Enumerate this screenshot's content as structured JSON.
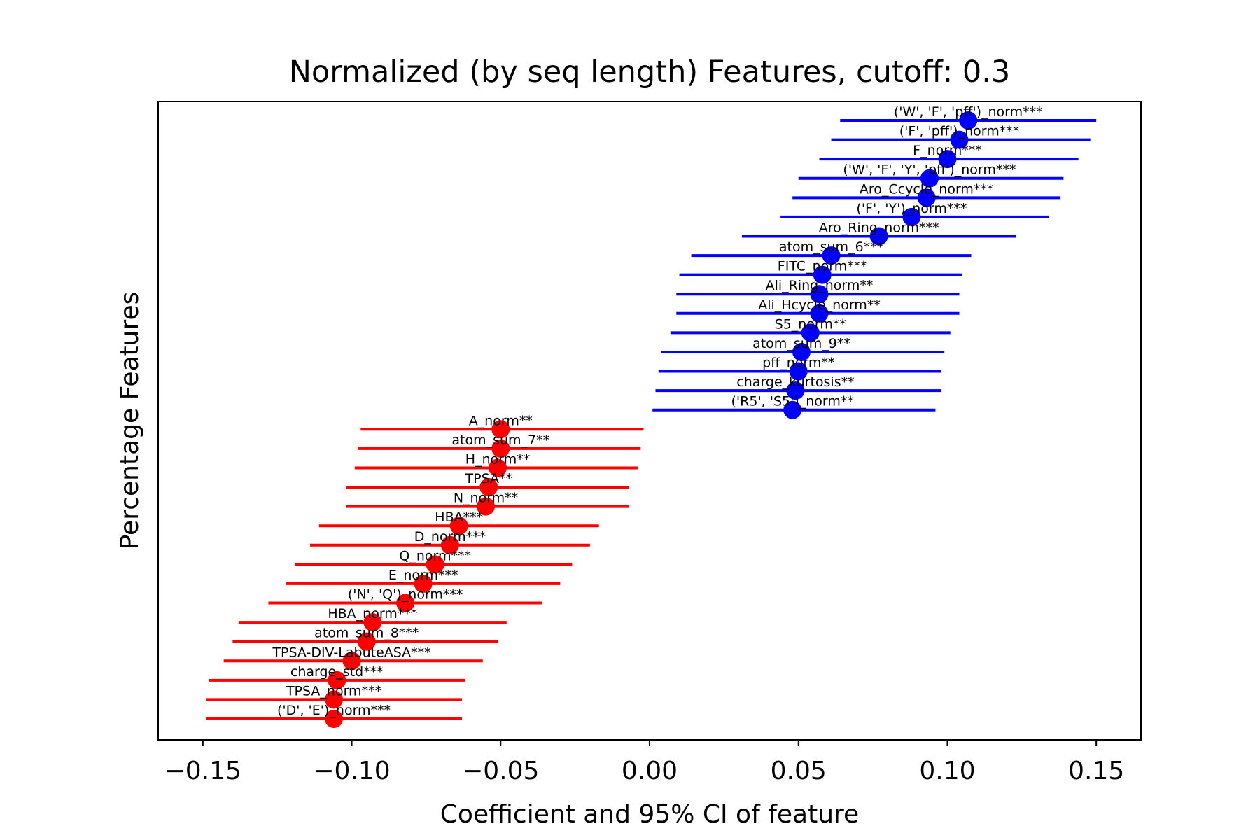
{
  "chart_data": {
    "type": "scatter",
    "subtype": "coefficient-errorbar",
    "title": "Normalized (by seq length) Features, cutoff: 0.3",
    "xlabel": "Coefficient and 95% CI of feature",
    "ylabel": "Percentage Features",
    "xlim": [
      -0.165,
      0.165
    ],
    "x_ticks": [
      -0.15,
      -0.1,
      -0.05,
      0.0,
      0.05,
      0.1,
      0.15
    ],
    "x_tick_labels": [
      "−0.15",
      "−0.10",
      "−0.05",
      "0.00",
      "0.05",
      "0.10",
      "0.15"
    ],
    "grid": false,
    "colors": {
      "positive": "#0000ff",
      "negative": "#ff0000"
    },
    "series": [
      {
        "color": "#0000ff",
        "points": [
          {
            "label": "('W', 'F', 'pff')_norm***",
            "coef": 0.107,
            "ci": [
              0.064,
              0.15
            ]
          },
          {
            "label": "('F', 'pff')_norm***",
            "coef": 0.104,
            "ci": [
              0.061,
              0.148
            ]
          },
          {
            "label": "F_norm***",
            "coef": 0.1,
            "ci": [
              0.057,
              0.144
            ]
          },
          {
            "label": "('W', 'F', 'Y', 'pff')_norm***",
            "coef": 0.094,
            "ci": [
              0.05,
              0.139
            ]
          },
          {
            "label": "Aro_Ccycle_norm***",
            "coef": 0.093,
            "ci": [
              0.048,
              0.138
            ]
          },
          {
            "label": "('F', 'Y')_norm***",
            "coef": 0.088,
            "ci": [
              0.044,
              0.134
            ]
          },
          {
            "label": "Aro_Ring_norm***",
            "coef": 0.077,
            "ci": [
              0.031,
              0.123
            ]
          },
          {
            "label": "atom_sum_6***",
            "coef": 0.061,
            "ci": [
              0.014,
              0.108
            ]
          },
          {
            "label": "FITC_norm***",
            "coef": 0.058,
            "ci": [
              0.01,
              0.105
            ]
          },
          {
            "label": "Ali_Ring_norm**",
            "coef": 0.057,
            "ci": [
              0.009,
              0.104
            ]
          },
          {
            "label": "Ali_Hcycle_norm**",
            "coef": 0.057,
            "ci": [
              0.009,
              0.104
            ]
          },
          {
            "label": "S5_norm**",
            "coef": 0.054,
            "ci": [
              0.007,
              0.101
            ]
          },
          {
            "label": "atom_sum_9**",
            "coef": 0.051,
            "ci": [
              0.004,
              0.099
            ]
          },
          {
            "label": "pff_norm**",
            "coef": 0.05,
            "ci": [
              0.003,
              0.098
            ]
          },
          {
            "label": "charge_kurtosis**",
            "coef": 0.049,
            "ci": [
              0.002,
              0.098
            ]
          },
          {
            "label": "('R5', 'S5')_norm**",
            "coef": 0.048,
            "ci": [
              0.001,
              0.096
            ]
          }
        ]
      },
      {
        "color": "#ff0000",
        "points": [
          {
            "label": "A_norm**",
            "coef": -0.05,
            "ci": [
              -0.097,
              -0.002
            ]
          },
          {
            "label": "atom_sum_7**",
            "coef": -0.05,
            "ci": [
              -0.098,
              -0.003
            ]
          },
          {
            "label": "H_norm**",
            "coef": -0.051,
            "ci": [
              -0.099,
              -0.004
            ]
          },
          {
            "label": "TPSA**",
            "coef": -0.054,
            "ci": [
              -0.102,
              -0.007
            ]
          },
          {
            "label": "N_norm**",
            "coef": -0.055,
            "ci": [
              -0.102,
              -0.007
            ]
          },
          {
            "label": "HBA***",
            "coef": -0.064,
            "ci": [
              -0.111,
              -0.017
            ]
          },
          {
            "label": "D_norm***",
            "coef": -0.067,
            "ci": [
              -0.114,
              -0.02
            ]
          },
          {
            "label": "Q_norm***",
            "coef": -0.072,
            "ci": [
              -0.119,
              -0.026
            ]
          },
          {
            "label": "E_norm***",
            "coef": -0.076,
            "ci": [
              -0.122,
              -0.03
            ]
          },
          {
            "label": "('N', 'Q')_norm***",
            "coef": -0.082,
            "ci": [
              -0.128,
              -0.036
            ]
          },
          {
            "label": "HBA_norm***",
            "coef": -0.093,
            "ci": [
              -0.138,
              -0.048
            ]
          },
          {
            "label": "atom_sum_8***",
            "coef": -0.095,
            "ci": [
              -0.14,
              -0.051
            ]
          },
          {
            "label": "TPSA-DIV-LabuteASA***",
            "coef": -0.1,
            "ci": [
              -0.143,
              -0.056
            ]
          },
          {
            "label": "charge_std***",
            "coef": -0.105,
            "ci": [
              -0.148,
              -0.062
            ]
          },
          {
            "label": "TPSA_norm***",
            "coef": -0.106,
            "ci": [
              -0.149,
              -0.063
            ]
          },
          {
            "label": "('D', 'E')_norm***",
            "coef": -0.106,
            "ci": [
              -0.149,
              -0.063
            ]
          }
        ]
      }
    ]
  }
}
